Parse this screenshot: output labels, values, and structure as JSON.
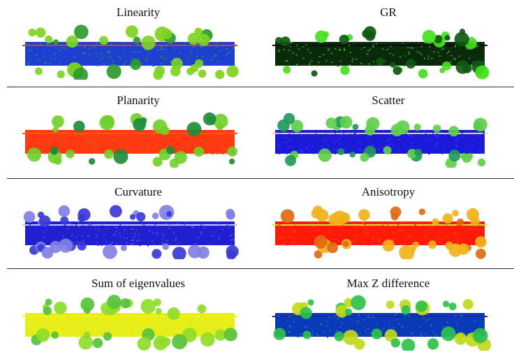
{
  "figure": {
    "panels": [
      {
        "title": "Linearity",
        "colors": {
          "base": "#1f3fd0",
          "accent": "#2aa52e",
          "tree": "#7ed321",
          "tree_dark": "#2e9b2b",
          "line": "#e23b1e"
        }
      },
      {
        "title": "GR",
        "colors": {
          "base": "#0b2a0b",
          "accent": "#2fc72a",
          "tree": "#45e01e",
          "tree_dark": "#0e5a10",
          "line": "#0a0a0a"
        }
      },
      {
        "title": "Planarity",
        "colors": {
          "base": "#ff3a12",
          "accent": "#f06a10",
          "tree": "#6fd02a",
          "tree_dark": "#1e8c3a",
          "line": "#ff5a00"
        }
      },
      {
        "title": "Scatter",
        "colors": {
          "base": "#1a1ad8",
          "accent": "#3a3ae8",
          "tree": "#5ed04a",
          "tree_dark": "#1f9a5a",
          "line": "#d8e84a"
        }
      },
      {
        "title": "Curvature",
        "colors": {
          "base": "#2020d0",
          "accent": "#5a5ae0",
          "tree": "#8080e6",
          "tree_dark": "#3a3ad6",
          "line": "#c8c8f0"
        }
      },
      {
        "title": "Anisotropy",
        "colors": {
          "base": "#ff1a0a",
          "accent": "#ff5a0a",
          "tree": "#f0b21a",
          "tree_dark": "#e06a12",
          "line": "#c8e83a"
        }
      },
      {
        "title": "Sum of eigenvalues",
        "colors": {
          "base": "#e8ee1a",
          "accent": "#d2e61a",
          "tree": "#8edc28",
          "tree_dark": "#56c23a",
          "line": "#f2f01e"
        }
      },
      {
        "title": "Max Z difference",
        "colors": {
          "base": "#0a3ab8",
          "accent": "#1a86b8",
          "tree": "#2ec24a",
          "tree_dark": "#c2d81a",
          "line": "#1a2a9a"
        }
      }
    ]
  }
}
